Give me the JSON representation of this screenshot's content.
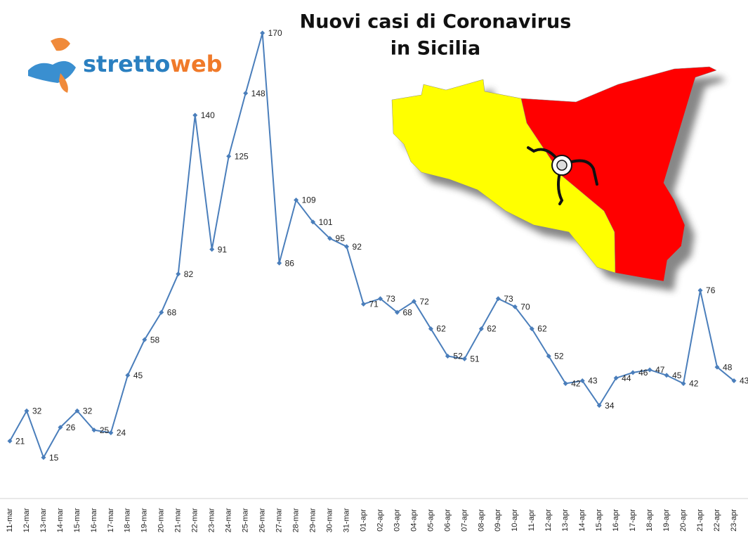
{
  "chart_data": {
    "type": "line",
    "title": [
      "Nuovi casi di Coronavirus",
      "in Sicilia"
    ],
    "logo": [
      "stretto",
      "web"
    ],
    "categories": [
      "11-mar",
      "12-mar",
      "13-mar",
      "14-mar",
      "15-mar",
      "16-mar",
      "17-mar",
      "18-mar",
      "19-mar",
      "20-mar",
      "21-mar",
      "22-mar",
      "23-mar",
      "24-mar",
      "25-mar",
      "26-mar",
      "27-mar",
      "28-mar",
      "29-mar",
      "30-mar",
      "31-mar",
      "01-apr",
      "02-apr",
      "03-apr",
      "04-apr",
      "05-apr",
      "06-apr",
      "07-apr",
      "08-apr",
      "09-apr",
      "10-apr",
      "11-apr",
      "12-apr",
      "13-apr",
      "14-apr",
      "15-apr",
      "16-apr",
      "17-apr",
      "18-apr",
      "19-apr",
      "20-apr",
      "21-apr",
      "22-apr",
      "23-apr"
    ],
    "values": [
      21,
      32,
      15,
      26,
      32,
      25,
      24,
      45,
      58,
      68,
      82,
      140,
      91,
      125,
      148,
      170,
      86,
      109,
      101,
      95,
      92,
      71,
      73,
      68,
      72,
      62,
      52,
      51,
      62,
      73,
      70,
      62,
      52,
      42,
      43,
      34,
      44,
      46,
      47,
      45,
      42,
      76,
      48,
      43
    ],
    "color": "#4a7ebb",
    "ylim": [
      0,
      170
    ]
  }
}
